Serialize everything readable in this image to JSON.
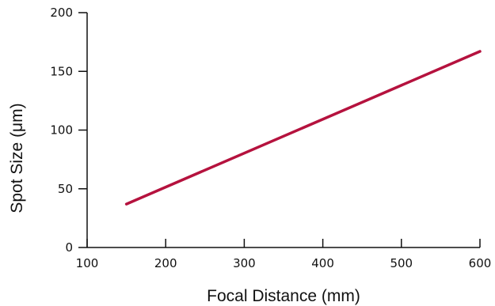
{
  "chart_data": {
    "type": "line",
    "title": "",
    "xlabel": "Focal Distance (mm)",
    "ylabel": "Spot Size (μm)",
    "xlim": [
      100,
      600
    ],
    "ylim": [
      0,
      200
    ],
    "xticks": [
      "100",
      "200",
      "300",
      "400",
      "500",
      "600"
    ],
    "yticks": [
      "0",
      "50",
      "100",
      "150",
      "200"
    ],
    "grid": false,
    "legend": "none",
    "series": [
      {
        "color": "#b5123e",
        "x": [
          150,
          600
        ],
        "y": [
          37,
          167
        ]
      }
    ]
  }
}
